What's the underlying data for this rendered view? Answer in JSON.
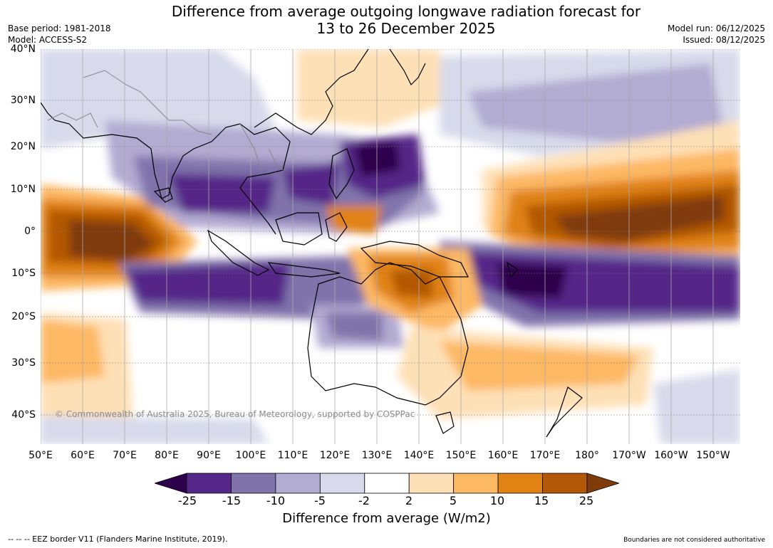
{
  "title": {
    "line1": "Difference from average outgoing longwave radiation forecast for",
    "line2": "13 to 26 December 2025"
  },
  "meta": {
    "base_period": "Base period: 1981-2018",
    "model": "Model: ACCESS-S2",
    "model_run": "Model run: 06/12/2025",
    "issued": "Issued: 08/12/2025"
  },
  "map": {
    "lat_labels": [
      "40°N",
      "30°N",
      "20°N",
      "10°N",
      "0°",
      "10°S",
      "20°S",
      "30°S",
      "40°S"
    ],
    "lon_labels": [
      "50°E",
      "60°E",
      "70°E",
      "80°E",
      "90°E",
      "100°E",
      "110°E",
      "120°E",
      "130°E",
      "140°E",
      "150°E",
      "160°E",
      "170°E",
      "180°",
      "170°W",
      "160°W",
      "150°W"
    ],
    "copyright": "© Commonwealth of Australia 2025, Bureau of Meteorology, supported by COSPPac"
  },
  "colorbar": {
    "colors": [
      "#2d004b",
      "#542788",
      "#8073ac",
      "#b2abd2",
      "#d8daeb",
      "#ffffff",
      "#fee0b6",
      "#fdb863",
      "#e08214",
      "#b35806",
      "#7f3b08"
    ],
    "ticks": [
      "-25",
      "-15",
      "-10",
      "-5",
      "-2",
      "2",
      "5",
      "10",
      "15",
      "25"
    ],
    "title": "Difference from average (W/m2)"
  },
  "footer": {
    "eez": "--  --  -- EEZ border V11 (Flanders Marine Institute, 2019).",
    "disclaimer": "Boundaries are not considered authoritative"
  }
}
